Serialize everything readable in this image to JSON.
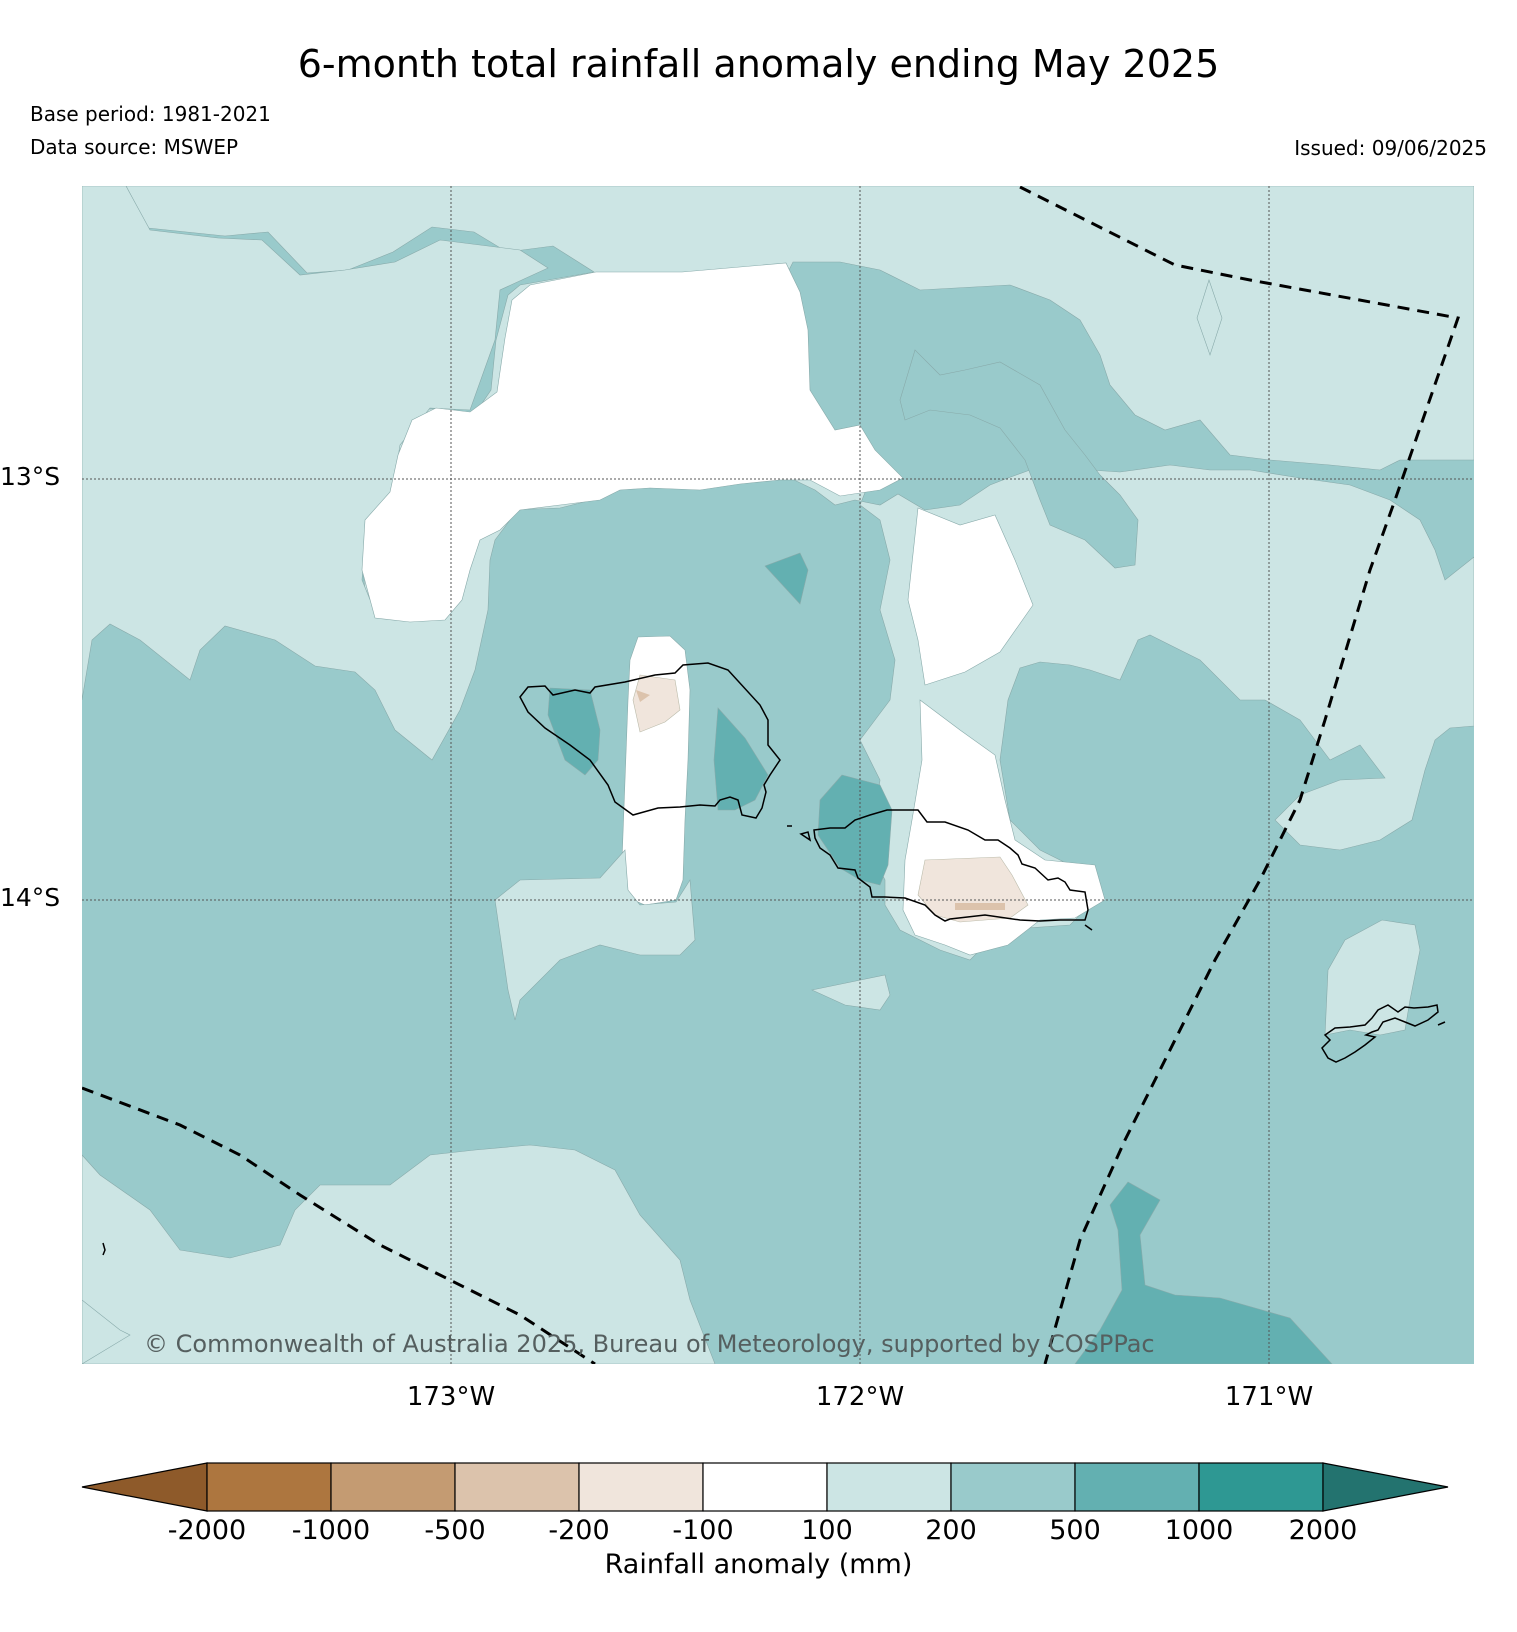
{
  "title": "6-month total rainfall anomaly ending May 2025",
  "base_period": "Base period: 1981-2021",
  "data_source": "Data source: MSWEP",
  "issued": "Issued: 09/06/2025",
  "map": {
    "latitude_labels": [
      "13°S",
      "14°S"
    ],
    "longitude_labels": [
      "173°W",
      "172°W",
      "171°W"
    ],
    "copyright": "© Commonwealth of Australia 2025, Bureau of Meteorology, supported by COSPPac",
    "colors": {
      "class_200_500": "#99cacb",
      "class_100_200": "#cce5e4",
      "class_500_1000": "#63b0b1",
      "class_neg100_100": "#ffffff",
      "class_neg200_neg100": "#f0e5dc",
      "class_neg500_neg200": "#dcc3ac",
      "coastline": "#000000",
      "eez_boundary": "#000000"
    }
  },
  "colorbar": {
    "label": "Rainfall anomaly (mm)",
    "ticks": [
      "-2000",
      "-1000",
      "-500",
      "-200",
      "-100",
      "100",
      "200",
      "500",
      "1000",
      "2000"
    ],
    "colors": [
      "#8e5a2a",
      "#ad763f",
      "#c49b72",
      "#dcc3ac",
      "#f0e5dc",
      "#ffffff",
      "#cce5e4",
      "#99cacb",
      "#63b0b1",
      "#2e9893",
      "#23736f"
    ]
  }
}
